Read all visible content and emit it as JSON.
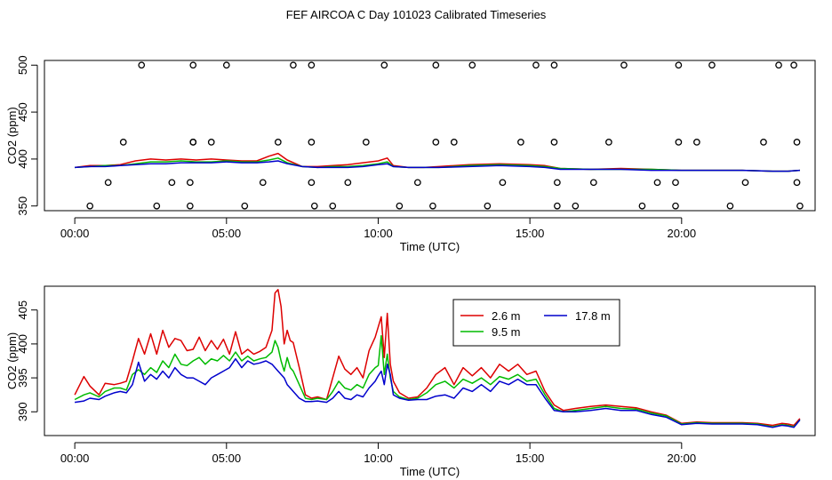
{
  "title": "FEF AIRCOA C  Day 101023  Calibrated Timeseries",
  "colors": {
    "red": "#dd0000",
    "green": "#00bb00",
    "blue": "#0000cc",
    "axis": "#000000"
  },
  "chart_data": [
    {
      "type": "line",
      "panel": "top",
      "xlabel": "Time (UTC)",
      "ylabel": "CO2 (ppm)",
      "xlim": [
        -1,
        24.4
      ],
      "ylim": [
        345,
        505
      ],
      "xticks": [
        0,
        5,
        10,
        15,
        20
      ],
      "xtick_labels": [
        "00:00",
        "05:00",
        "10:00",
        "15:00",
        "20:00"
      ],
      "yticks": [
        350,
        400,
        450,
        500
      ],
      "ytick_labels": [
        "350",
        "400",
        "450",
        "500"
      ],
      "grid": false,
      "series": [
        {
          "name": "2.6 m",
          "color": "red",
          "x": [
            0,
            0.5,
            1,
            1.5,
            2,
            2.5,
            3,
            3.5,
            4,
            4.5,
            5,
            5.5,
            6,
            6.4,
            6.7,
            7,
            7.5,
            8,
            8.5,
            9,
            9.5,
            10,
            10.3,
            10.5,
            11,
            11.5,
            12,
            13,
            14,
            15,
            15.5,
            16,
            17,
            18,
            19,
            20,
            21,
            22,
            23,
            23.5,
            23.9
          ],
          "y": [
            391,
            393,
            393,
            394,
            398,
            400,
            399,
            400,
            399,
            400,
            399,
            398,
            398,
            403,
            406,
            399,
            392,
            392,
            393,
            394,
            396,
            398,
            401,
            393,
            391,
            391,
            392,
            394,
            395,
            394,
            393,
            390,
            389,
            390,
            389,
            388,
            388,
            388,
            387,
            387,
            388
          ]
        },
        {
          "name": "9.5 m",
          "color": "green",
          "x": [
            0,
            0.5,
            1,
            1.5,
            2,
            2.5,
            3,
            3.5,
            4,
            4.5,
            5,
            5.5,
            6,
            6.4,
            6.7,
            7,
            7.5,
            8,
            8.5,
            9,
            9.5,
            10,
            10.3,
            10.5,
            11,
            11.5,
            12,
            13,
            14,
            15,
            15.5,
            16,
            17,
            18,
            19,
            20,
            21,
            22,
            23,
            23.5,
            23.9
          ],
          "y": [
            391,
            392,
            393,
            393,
            395,
            397,
            397,
            398,
            397,
            397,
            398,
            397,
            397,
            399,
            401,
            396,
            392,
            391,
            392,
            392,
            393,
            395,
            397,
            392,
            391,
            391,
            391,
            393,
            394,
            393,
            392,
            390,
            389,
            389,
            389,
            388,
            388,
            388,
            387,
            387,
            388
          ]
        },
        {
          "name": "17.8 m",
          "color": "blue",
          "x": [
            0,
            0.5,
            1,
            1.5,
            2,
            2.5,
            3,
            3.5,
            4,
            4.5,
            5,
            5.5,
            6,
            6.4,
            6.7,
            7,
            7.5,
            8,
            8.5,
            9,
            9.5,
            10,
            10.3,
            10.5,
            11,
            11.5,
            12,
            13,
            14,
            15,
            15.5,
            16,
            17,
            18,
            19,
            20,
            21,
            22,
            23,
            23.5,
            23.9
          ],
          "y": [
            391,
            392,
            392,
            393,
            394,
            395,
            395,
            396,
            396,
            396,
            397,
            396,
            396,
            397,
            398,
            395,
            392,
            391,
            391,
            391,
            392,
            394,
            395,
            392,
            391,
            391,
            391,
            392,
            393,
            392,
            391,
            389,
            389,
            389,
            388,
            388,
            388,
            388,
            387,
            387,
            388
          ]
        }
      ],
      "points": {
        "x": [
          0.5,
          1.1,
          1.6,
          2.2,
          2.7,
          3.2,
          3.8,
          3.8,
          3.9,
          3.9,
          3.9,
          4.5,
          5.0,
          5.6,
          6.2,
          6.7,
          7.2,
          7.8,
          7.8,
          7.8,
          7.9,
          8.5,
          9.0,
          9.6,
          10.2,
          10.7,
          11.3,
          11.8,
          11.9,
          11.9,
          12.5,
          13.1,
          13.6,
          14.1,
          14.7,
          15.2,
          15.8,
          15.8,
          15.9,
          15.9,
          16.5,
          17.1,
          17.6,
          18.1,
          18.7,
          19.2,
          19.8,
          19.8,
          19.9,
          19.9,
          20.5,
          21.0,
          21.6,
          22.1,
          22.7,
          23.2,
          23.7,
          23.8,
          23.8,
          23.9
        ],
        "y": [
          350,
          375,
          418,
          500,
          350,
          375,
          350,
          375,
          418,
          500,
          418,
          418,
          500,
          350,
          375,
          418,
          500,
          500,
          418,
          375,
          350,
          350,
          375,
          418,
          500,
          350,
          375,
          350,
          418,
          500,
          418,
          500,
          350,
          375,
          418,
          500,
          500,
          418,
          375,
          350,
          350,
          375,
          418,
          500,
          350,
          375,
          350,
          375,
          418,
          500,
          418,
          500,
          350,
          375,
          418,
          500,
          500,
          418,
          375,
          350
        ]
      }
    },
    {
      "type": "line",
      "panel": "bottom",
      "xlabel": "Time (UTC)",
      "ylabel": "CO2 (ppm)",
      "xlim": [
        -1,
        24.4
      ],
      "ylim": [
        386.5,
        408.5
      ],
      "xticks": [
        0,
        5,
        10,
        15,
        20
      ],
      "xtick_labels": [
        "00:00",
        "05:00",
        "10:00",
        "15:00",
        "20:00"
      ],
      "yticks": [
        390,
        395,
        400,
        405
      ],
      "ytick_labels": [
        "390",
        "395",
        "400",
        "405"
      ],
      "grid": false,
      "legend": {
        "placement": "top-center",
        "entries": [
          "2.6 m",
          "9.5 m",
          "17.8 m"
        ]
      },
      "series": [
        {
          "name": "2.6 m",
          "color": "red",
          "x": [
            0,
            0.3,
            0.5,
            0.8,
            1.0,
            1.3,
            1.5,
            1.7,
            1.9,
            2.1,
            2.3,
            2.5,
            2.7,
            2.9,
            3.1,
            3.3,
            3.5,
            3.7,
            3.9,
            4.1,
            4.3,
            4.5,
            4.7,
            4.9,
            5.1,
            5.3,
            5.5,
            5.7,
            5.9,
            6.1,
            6.3,
            6.5,
            6.6,
            6.7,
            6.8,
            6.9,
            7.0,
            7.1,
            7.2,
            7.4,
            7.6,
            7.8,
            8.0,
            8.3,
            8.5,
            8.7,
            8.9,
            9.1,
            9.3,
            9.5,
            9.7,
            9.9,
            10.0,
            10.1,
            10.2,
            10.3,
            10.4,
            10.5,
            10.7,
            11.0,
            11.3,
            11.6,
            11.9,
            12.2,
            12.5,
            12.8,
            13.1,
            13.4,
            13.7,
            14.0,
            14.3,
            14.6,
            14.9,
            15.2,
            15.5,
            15.8,
            16.1,
            16.5,
            17.0,
            17.5,
            18.0,
            18.5,
            19.0,
            19.5,
            20.0,
            20.5,
            21.0,
            21.5,
            22.0,
            22.5,
            23.0,
            23.3,
            23.5,
            23.7,
            23.9
          ],
          "y": [
            392.5,
            395.2,
            393.8,
            392.5,
            394.2,
            394.0,
            394.2,
            394.5,
            397.5,
            400.8,
            398.5,
            401.5,
            398.5,
            402.0,
            399.5,
            400.8,
            400.5,
            399.0,
            399.2,
            401.0,
            399.0,
            400.5,
            399.2,
            400.7,
            398.5,
            401.8,
            398.5,
            399.2,
            398.5,
            398.9,
            399.5,
            402.0,
            407.5,
            408.0,
            405.5,
            400.0,
            402.0,
            400.5,
            400.2,
            396.5,
            392.5,
            392.0,
            392.2,
            391.8,
            395.0,
            398.2,
            396.3,
            395.5,
            396.5,
            395.0,
            399.0,
            401.0,
            402.5,
            404.0,
            398.0,
            404.5,
            397.0,
            394.5,
            392.8,
            392.0,
            392.2,
            393.5,
            395.5,
            396.5,
            394.0,
            396.5,
            395.3,
            396.5,
            395.0,
            397.0,
            396.0,
            397.0,
            395.5,
            396.0,
            393.0,
            391.0,
            390.2,
            390.5,
            390.8,
            391.0,
            390.8,
            390.6,
            390.0,
            389.5,
            388.3,
            388.5,
            388.4,
            388.4,
            388.4,
            388.3,
            388.0,
            388.3,
            388.2,
            388.0,
            389.0
          ]
        },
        {
          "name": "9.5 m",
          "color": "green",
          "x": [
            0,
            0.3,
            0.5,
            0.8,
            1.0,
            1.3,
            1.5,
            1.7,
            1.9,
            2.1,
            2.3,
            2.5,
            2.7,
            2.9,
            3.1,
            3.3,
            3.5,
            3.7,
            3.9,
            4.1,
            4.3,
            4.5,
            4.7,
            4.9,
            5.1,
            5.3,
            5.5,
            5.7,
            5.9,
            6.1,
            6.3,
            6.5,
            6.6,
            6.7,
            6.8,
            6.9,
            7.0,
            7.1,
            7.2,
            7.4,
            7.6,
            7.8,
            8.0,
            8.3,
            8.5,
            8.7,
            8.9,
            9.1,
            9.3,
            9.5,
            9.7,
            9.9,
            10.0,
            10.1,
            10.2,
            10.3,
            10.4,
            10.5,
            10.7,
            11.0,
            11.3,
            11.6,
            11.9,
            12.2,
            12.5,
            12.8,
            13.1,
            13.4,
            13.7,
            14.0,
            14.3,
            14.6,
            14.9,
            15.2,
            15.5,
            15.8,
            16.1,
            16.5,
            17.0,
            17.5,
            18.0,
            18.5,
            19.0,
            19.5,
            20.0,
            20.5,
            21.0,
            21.5,
            22.0,
            22.5,
            23.0,
            23.3,
            23.5,
            23.7,
            23.9
          ],
          "y": [
            391.8,
            392.5,
            392.8,
            392.2,
            393.0,
            393.5,
            393.5,
            393.2,
            395.5,
            396.2,
            395.5,
            396.5,
            395.8,
            397.5,
            396.5,
            398.5,
            397.0,
            396.8,
            397.5,
            398.0,
            397.0,
            397.8,
            397.5,
            398.3,
            397.5,
            398.8,
            397.5,
            398.2,
            397.5,
            397.8,
            398.0,
            398.8,
            400.5,
            399.5,
            397.5,
            396.0,
            398.0,
            396.5,
            396.0,
            394.0,
            392.0,
            391.8,
            392.0,
            391.8,
            393.0,
            394.5,
            393.5,
            393.2,
            394.0,
            393.5,
            395.5,
            396.5,
            396.8,
            401.2,
            395.5,
            398.5,
            395.0,
            393.0,
            392.2,
            391.8,
            392.0,
            392.8,
            394.0,
            394.5,
            393.5,
            394.8,
            394.2,
            395.0,
            394.0,
            395.2,
            394.8,
            395.5,
            394.5,
            394.8,
            392.5,
            390.5,
            390.0,
            390.2,
            390.5,
            390.8,
            390.5,
            390.4,
            389.8,
            389.4,
            388.2,
            388.4,
            388.3,
            388.3,
            388.3,
            388.2,
            387.8,
            388.1,
            388.0,
            387.8,
            388.8
          ]
        },
        {
          "name": "17.8 m",
          "color": "blue",
          "x": [
            0,
            0.3,
            0.5,
            0.8,
            1.0,
            1.3,
            1.5,
            1.7,
            1.9,
            2.1,
            2.3,
            2.5,
            2.7,
            2.9,
            3.1,
            3.3,
            3.5,
            3.7,
            3.9,
            4.1,
            4.3,
            4.5,
            4.7,
            4.9,
            5.1,
            5.3,
            5.5,
            5.7,
            5.9,
            6.1,
            6.3,
            6.5,
            6.6,
            6.7,
            6.8,
            6.9,
            7.0,
            7.1,
            7.2,
            7.4,
            7.6,
            7.8,
            8.0,
            8.3,
            8.5,
            8.7,
            8.9,
            9.1,
            9.3,
            9.5,
            9.7,
            9.9,
            10.0,
            10.1,
            10.2,
            10.3,
            10.4,
            10.5,
            10.7,
            11.0,
            11.3,
            11.6,
            11.9,
            12.2,
            12.5,
            12.8,
            13.1,
            13.4,
            13.7,
            14.0,
            14.3,
            14.6,
            14.9,
            15.2,
            15.5,
            15.8,
            16.1,
            16.5,
            17.0,
            17.5,
            18.0,
            18.5,
            19.0,
            19.5,
            20.0,
            20.5,
            21.0,
            21.5,
            22.0,
            22.5,
            23.0,
            23.3,
            23.5,
            23.7,
            23.9
          ],
          "y": [
            391.4,
            391.6,
            392.0,
            391.8,
            392.3,
            392.8,
            393.0,
            392.8,
            394.0,
            397.3,
            394.5,
            395.5,
            394.8,
            396.0,
            395.0,
            396.5,
            395.5,
            395.0,
            395.0,
            394.5,
            394.0,
            395.0,
            395.5,
            396.0,
            396.5,
            397.8,
            396.5,
            397.5,
            397.0,
            397.2,
            397.5,
            397.0,
            396.5,
            396.0,
            395.5,
            395.0,
            394.0,
            393.5,
            393.0,
            392.0,
            391.5,
            391.5,
            391.6,
            391.4,
            392.0,
            393.0,
            392.0,
            391.8,
            392.5,
            392.2,
            393.5,
            394.5,
            395.3,
            396.0,
            394.0,
            397.0,
            395.5,
            392.5,
            392.0,
            391.7,
            391.8,
            391.8,
            392.3,
            392.5,
            392.0,
            393.5,
            393.0,
            394.0,
            393.0,
            394.5,
            394.0,
            394.8,
            394.0,
            394.0,
            392.0,
            390.2,
            390.0,
            390.0,
            390.2,
            390.5,
            390.2,
            390.2,
            389.6,
            389.2,
            388.1,
            388.3,
            388.2,
            388.2,
            388.2,
            388.1,
            387.7,
            388.0,
            387.9,
            387.7,
            388.8
          ]
        }
      ]
    }
  ]
}
